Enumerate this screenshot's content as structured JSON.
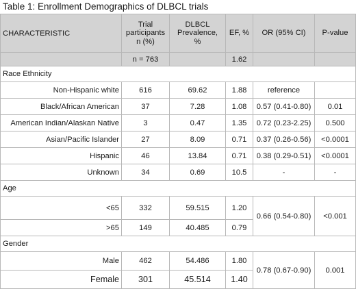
{
  "title": "Table 1: Enrollment Demographics of DLBCL trials",
  "headers": {
    "characteristic": "CHARACTERISTIC",
    "trial_line1": "Trial",
    "trial_line2": "participants",
    "trial_line3": "n (%)",
    "prev_line1": "DLBCL",
    "prev_line2": "Prevalence,",
    "prev_line3": "%",
    "ef": "EF, %",
    "or": "OR (95% CI)",
    "p": "P-value"
  },
  "total_row": {
    "n": "n = 763",
    "ef": "1.62"
  },
  "race": {
    "label": "Race Ethnicity",
    "rows": [
      {
        "label": "Non-Hispanic white",
        "n": "616",
        "prev": "69.62",
        "ef": "1.88",
        "or": "reference",
        "p": ""
      },
      {
        "label": "Black/African American",
        "n": "37",
        "prev": "7.28",
        "ef": "1.08",
        "or": "0.57 (0.41-0.80)",
        "p": "0.01"
      },
      {
        "label": "American Indian/Alaskan Native",
        "n": "3",
        "prev": "0.47",
        "ef": "1.35",
        "or": "0.72 (0.23-2.25)",
        "p": "0.500"
      },
      {
        "label": "Asian/Pacific Islander",
        "n": "27",
        "prev": "8.09",
        "ef": "0.71",
        "or": "0.37 (0.26-0.56)",
        "p": "<0.0001"
      },
      {
        "label": "Hispanic",
        "n": "46",
        "prev": "13.84",
        "ef": "0.71",
        "or": "0.38 (0.29-0.51)",
        "p": "<0.0001"
      },
      {
        "label": "Unknown",
        "n": "34",
        "prev": "0.69",
        "ef": "10.5",
        "or": "-",
        "p": "-"
      }
    ]
  },
  "age": {
    "label": "Age",
    "rows": [
      {
        "label": "<65",
        "n": "332",
        "prev": "59.515",
        "ef": "1.20"
      },
      {
        "label": ">65",
        "n": "149",
        "prev": "40.485",
        "ef": "0.79"
      }
    ],
    "or": "0.66 (0.54-0.80)",
    "p": "<0.001"
  },
  "gender": {
    "label": "Gender",
    "rows": [
      {
        "label": "Male",
        "n": "462",
        "prev": "54.486",
        "ef": "1.80"
      },
      {
        "label": "Female",
        "n": "301",
        "prev": "45.514",
        "ef": "1.40"
      }
    ],
    "or": "0.78 (0.67-0.90)",
    "p": "0.001"
  }
}
